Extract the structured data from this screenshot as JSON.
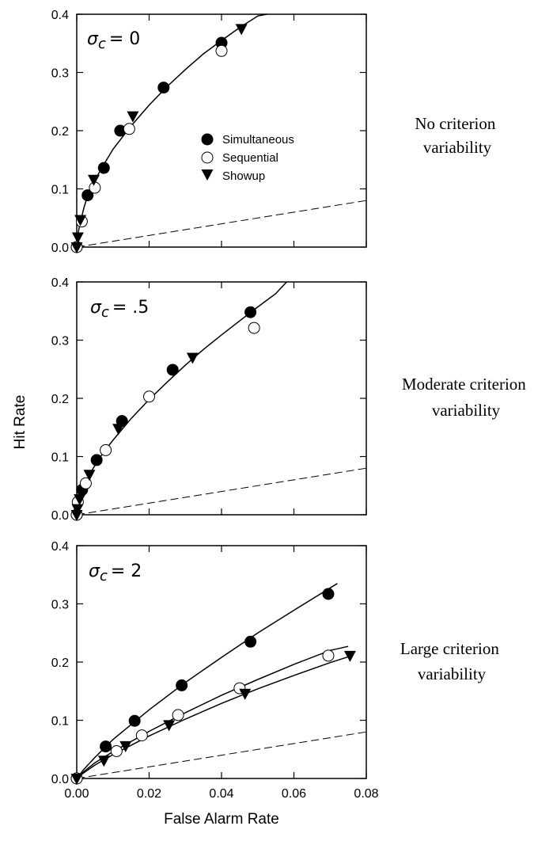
{
  "chart_data": {
    "type": "scatter",
    "xlabel": "False Alarm Rate",
    "ylabel": "Hit Rate",
    "xlim": [
      0,
      0.08
    ],
    "ylim": [
      0,
      0.4
    ],
    "xticks": [
      "0.00",
      "0.02",
      "0.04",
      "0.06",
      "0.08"
    ],
    "yticks": [
      "0.0",
      "0.1",
      "0.2",
      "0.3",
      "0.4"
    ],
    "legend": {
      "placement": "inside top panel, center",
      "entries": [
        {
          "name": "Simultaneous",
          "marker": "filled-circle"
        },
        {
          "name": "Sequential",
          "marker": "open-circle"
        },
        {
          "name": "Showup",
          "marker": "filled-triangle-down"
        }
      ]
    },
    "panels": [
      {
        "label_symbol": "σ",
        "label_sub": "c",
        "label_value": "= 0",
        "side_label_lines": [
          "No criterion",
          "variability"
        ],
        "series": [
          {
            "name": "Simultaneous",
            "x": [
              0.0,
              0.003,
              0.0075,
              0.012,
              0.024,
              0.04
            ],
            "y": [
              0.0,
              0.089,
              0.136,
              0.2,
              0.274,
              0.351
            ]
          },
          {
            "name": "Sequential",
            "x": [
              0.0,
              0.0014,
              0.005,
              0.0145,
              0.04
            ],
            "y": [
              0.0,
              0.044,
              0.102,
              0.203,
              0.337
            ]
          },
          {
            "name": "Showup",
            "x": [
              0.0,
              0.0003,
              0.001,
              0.0047,
              0.0155,
              0.0455
            ],
            "y": [
              0.0,
              0.017,
              0.047,
              0.116,
              0.225,
              0.375
            ]
          }
        ],
        "curves": [
          {
            "x": [
              0,
              0.0005,
              0.001,
              0.002,
              0.003,
              0.005,
              0.0075,
              0.01,
              0.015,
              0.02,
              0.025,
              0.03,
              0.035,
              0.04,
              0.045,
              0.05,
              0.0525
            ],
            "y": [
              0,
              0.028,
              0.043,
              0.068,
              0.088,
              0.115,
              0.142,
              0.168,
              0.208,
              0.244,
              0.276,
              0.305,
              0.332,
              0.355,
              0.377,
              0.397,
              0.405
            ]
          }
        ],
        "chance_line": {
          "x": [
            0,
            0.08
          ],
          "y": [
            0,
            0.08
          ]
        }
      },
      {
        "label_symbol": "σ",
        "label_sub": "c",
        "label_value": "= .5",
        "side_label_lines": [
          "Moderate criterion",
          "variability"
        ],
        "series": [
          {
            "name": "Simultaneous",
            "x": [
              0.0,
              0.0015,
              0.0055,
              0.0125,
              0.0265,
              0.048
            ],
            "y": [
              0.0,
              0.043,
              0.094,
              0.161,
              0.249,
              0.348
            ]
          },
          {
            "name": "Sequential",
            "x": [
              0.0,
              0.0003,
              0.0025,
              0.008,
              0.02,
              0.049
            ],
            "y": [
              0.0,
              0.022,
              0.054,
              0.111,
              0.203,
              0.321
            ]
          },
          {
            "name": "Showup",
            "x": [
              0.0,
              0.0002,
              0.0008,
              0.0035,
              0.0115,
              0.032
            ],
            "y": [
              0.0,
              0.01,
              0.027,
              0.069,
              0.148,
              0.27
            ]
          }
        ],
        "curves": [
          {
            "x": [
              0,
              0.0005,
              0.001,
              0.002,
              0.004,
              0.006,
              0.008,
              0.01,
              0.015,
              0.02,
              0.025,
              0.03,
              0.035,
              0.04,
              0.045,
              0.05,
              0.055,
              0.058
            ],
            "y": [
              0,
              0.02,
              0.031,
              0.048,
              0.074,
              0.095,
              0.112,
              0.128,
              0.165,
              0.198,
              0.228,
              0.257,
              0.284,
              0.309,
              0.333,
              0.357,
              0.38,
              0.4
            ]
          }
        ],
        "chance_line": {
          "x": [
            0,
            0.08
          ],
          "y": [
            0,
            0.08
          ]
        }
      },
      {
        "label_symbol": "σ",
        "label_sub": "c",
        "label_value": "= 2",
        "side_label_lines": [
          "Large criterion",
          "variability"
        ],
        "series": [
          {
            "name": "Simultaneous",
            "x": [
              0.0,
              0.008,
              0.016,
              0.029,
              0.048,
              0.0695
            ],
            "y": [
              0.0,
              0.055,
              0.099,
              0.16,
              0.235,
              0.317
            ]
          },
          {
            "name": "Sequential",
            "x": [
              0.0,
              0.011,
              0.018,
              0.028,
              0.045,
              0.0695
            ],
            "y": [
              0.0,
              0.047,
              0.074,
              0.109,
              0.155,
              0.211
            ]
          },
          {
            "name": "Showup",
            "x": [
              0.0,
              0.0075,
              0.0135,
              0.0255,
              0.0465,
              0.0755
            ],
            "y": [
              0.0,
              0.031,
              0.056,
              0.092,
              0.146,
              0.211
            ]
          }
        ],
        "curves": [
          {
            "x": [
              0,
              0.002,
              0.005,
              0.01,
              0.02,
              0.03,
              0.04,
              0.05,
              0.06,
              0.072
            ],
            "y": [
              0,
              0.016,
              0.036,
              0.067,
              0.118,
              0.165,
              0.208,
              0.25,
              0.289,
              0.335
            ]
          },
          {
            "x": [
              0,
              0.002,
              0.005,
              0.01,
              0.02,
              0.03,
              0.04,
              0.05,
              0.06,
              0.07,
              0.075
            ],
            "y": [
              0,
              0.012,
              0.027,
              0.046,
              0.081,
              0.113,
              0.143,
              0.17,
              0.196,
              0.22,
              0.227
            ]
          },
          {
            "x": [
              0,
              0.002,
              0.005,
              0.01,
              0.02,
              0.03,
              0.04,
              0.05,
              0.06,
              0.07,
              0.0755
            ],
            "y": [
              0,
              0.01,
              0.023,
              0.041,
              0.073,
              0.102,
              0.129,
              0.154,
              0.177,
              0.199,
              0.21
            ]
          }
        ],
        "chance_line": {
          "x": [
            0,
            0.08
          ],
          "y": [
            0,
            0.08
          ]
        }
      }
    ]
  }
}
